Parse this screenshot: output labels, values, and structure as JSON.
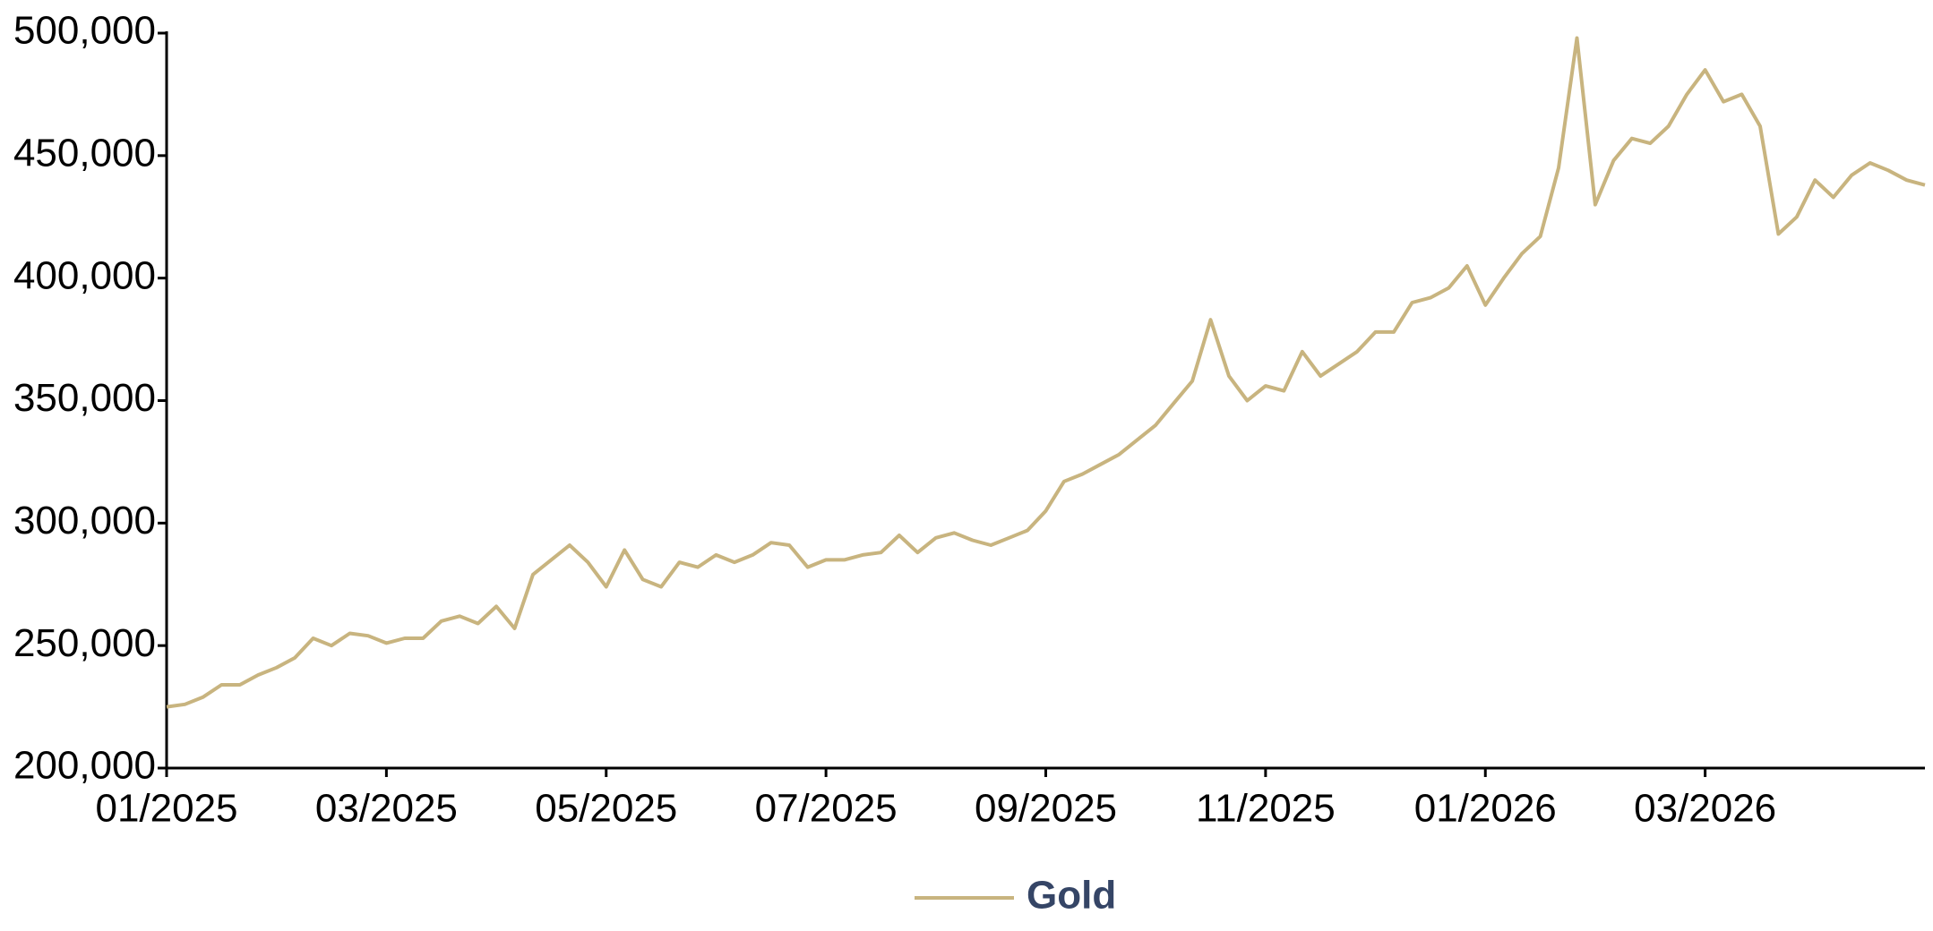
{
  "chart_data": {
    "type": "line",
    "categories": [
      "01/2025",
      null,
      null,
      null,
      null,
      null,
      null,
      null,
      null,
      null,
      null,
      null,
      "03/2025",
      null,
      null,
      null,
      null,
      null,
      null,
      null,
      null,
      null,
      null,
      null,
      "05/2025",
      null,
      null,
      null,
      null,
      null,
      null,
      null,
      null,
      null,
      null,
      null,
      "07/2025",
      null,
      null,
      null,
      null,
      null,
      null,
      null,
      null,
      null,
      null,
      null,
      "09/2025",
      null,
      null,
      null,
      null,
      null,
      null,
      null,
      null,
      null,
      null,
      null,
      "11/2025",
      null,
      null,
      null,
      null,
      null,
      null,
      null,
      null,
      null,
      null,
      null,
      "01/2026",
      null,
      null,
      null,
      null,
      null,
      null,
      null,
      null,
      null,
      null,
      null,
      "03/2026",
      null,
      null,
      null,
      null,
      null,
      null,
      null,
      null,
      null,
      null,
      null,
      null
    ],
    "series": [
      {
        "name": "Gold",
        "color": "#c8b47f",
        "values": [
          225000,
          226000,
          229000,
          234000,
          234000,
          238000,
          241000,
          245000,
          253000,
          250000,
          255000,
          254000,
          251000,
          253000,
          253000,
          260000,
          262000,
          259000,
          266000,
          257000,
          279000,
          285000,
          291000,
          284000,
          274000,
          289000,
          277000,
          274000,
          284000,
          282000,
          287000,
          284000,
          287000,
          292000,
          291000,
          282000,
          285000,
          285000,
          287000,
          288000,
          295000,
          288000,
          294000,
          296000,
          293000,
          291000,
          294000,
          297000,
          305000,
          317000,
          320000,
          324000,
          328000,
          334000,
          340000,
          349000,
          358000,
          383000,
          360000,
          350000,
          356000,
          354000,
          370000,
          360000,
          365000,
          370000,
          378000,
          378000,
          390000,
          392000,
          396000,
          405000,
          389000,
          400000,
          410000,
          417000,
          445000,
          498000,
          430000,
          448000,
          457000,
          455000,
          462000,
          475000,
          485000,
          472000,
          475000,
          462000,
          418000,
          425000,
          440000,
          433000,
          442000,
          447000,
          444000,
          440000,
          438000
        ]
      }
    ],
    "ylim": [
      200000,
      500000
    ],
    "yticks": [
      {
        "value": 200000,
        "label": "200,000"
      },
      {
        "value": 250000,
        "label": "250,000"
      },
      {
        "value": 300000,
        "label": "300,000"
      },
      {
        "value": 350000,
        "label": "350,000"
      },
      {
        "value": 400000,
        "label": "400,000"
      },
      {
        "value": 450000,
        "label": "450,000"
      },
      {
        "value": 500000,
        "label": "500,000"
      }
    ],
    "grid": false
  }
}
